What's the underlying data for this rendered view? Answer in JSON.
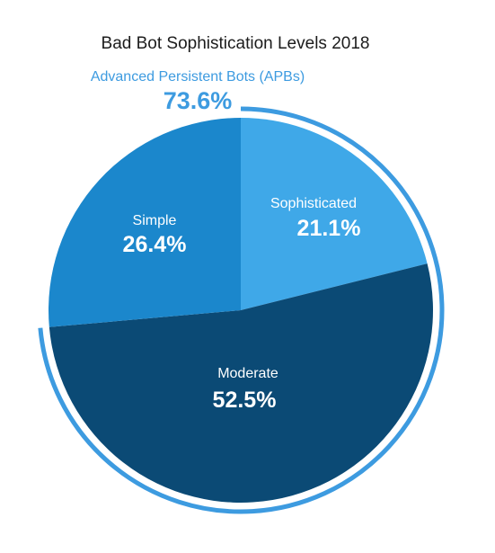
{
  "chart_data": {
    "type": "pie",
    "title": "Bad Bot Sophistication Levels 2018",
    "slices": [
      {
        "label": "Sophisticated",
        "value": 21.1,
        "value_label": "21.1%",
        "color": "#3fa8e8"
      },
      {
        "label": "Moderate",
        "value": 52.5,
        "value_label": "52.5%",
        "color": "#0b4a75"
      },
      {
        "label": "Simple",
        "value": 26.4,
        "value_label": "26.4%",
        "color": "#1b87cc"
      }
    ],
    "group": {
      "label": "Advanced Persistent Bots (APBs)",
      "value": 73.6,
      "value_label": "73.6%",
      "members": [
        "Sophisticated",
        "Moderate"
      ],
      "color": "#3d9be0"
    }
  }
}
